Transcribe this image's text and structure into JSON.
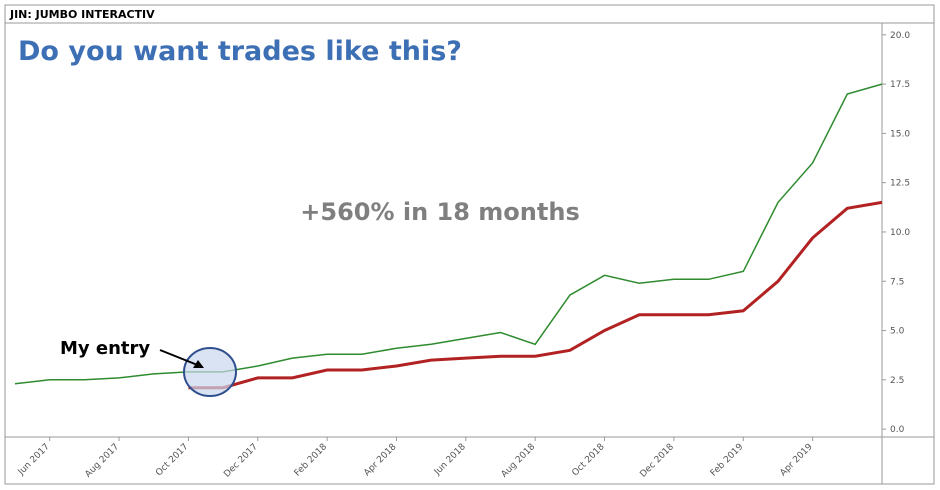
{
  "chart_data": {
    "type": "line",
    "title": "JIN: JUMBO INTERACTIV",
    "annotations": [
      "Do you want trades like this?",
      "+560% in 18 months",
      "My entry"
    ],
    "x": [
      "2017-05",
      "2017-06",
      "2017-07",
      "2017-08",
      "2017-09",
      "2017-10",
      "2017-11",
      "2017-12",
      "2018-01",
      "2018-02",
      "2018-03",
      "2018-04",
      "2018-05",
      "2018-06",
      "2018-07",
      "2018-08",
      "2018-09",
      "2018-10",
      "2018-11",
      "2018-12",
      "2019-01",
      "2019-02",
      "2019-03",
      "2019-04",
      "2019-05",
      "2019-06"
    ],
    "series": [
      {
        "color": "#2e8b2e",
        "values": [
          2.3,
          2.5,
          2.5,
          2.6,
          2.8,
          2.9,
          2.9,
          3.2,
          3.6,
          3.8,
          3.8,
          4.1,
          4.3,
          4.6,
          4.9,
          4.3,
          6.8,
          7.8,
          7.4,
          7.6,
          7.6,
          8.0,
          11.5,
          13.5,
          17.0,
          17.5
        ]
      },
      {
        "color": "#b22222",
        "values": [
          null,
          null,
          null,
          null,
          null,
          2.1,
          2.1,
          2.6,
          2.6,
          3.0,
          3.0,
          3.2,
          3.5,
          3.6,
          3.7,
          3.7,
          4.0,
          5.0,
          5.8,
          5.8,
          5.8,
          6.0,
          7.5,
          9.7,
          11.2,
          11.5
        ]
      }
    ],
    "xlim": [
      "2017-05",
      "2019-06"
    ],
    "xticks": [
      {
        "value": "2017-06",
        "label": "Jun 2017"
      },
      {
        "value": "2017-08",
        "label": "Aug 2017"
      },
      {
        "value": "2017-10",
        "label": "Oct 2017"
      },
      {
        "value": "2017-12",
        "label": "Dec 2017"
      },
      {
        "value": "2018-02",
        "label": "Feb 2018"
      },
      {
        "value": "2018-04",
        "label": "Apr 2018"
      },
      {
        "value": "2018-06",
        "label": "Jun 2018"
      },
      {
        "value": "2018-08",
        "label": "Aug 2018"
      },
      {
        "value": "2018-10",
        "label": "Oct 2018"
      },
      {
        "value": "2018-12",
        "label": "Dec 2018"
      },
      {
        "value": "2019-02",
        "label": "Feb 2019"
      },
      {
        "value": "2019-04",
        "label": "Apr 2019"
      }
    ],
    "ylim": [
      -0.4,
      20.6
    ],
    "yticks": [
      {
        "value": 0,
        "label": "0.0"
      },
      2.5,
      {
        "value": 5,
        "label": "5.0"
      },
      7.5,
      {
        "value": 10,
        "label": "10.0"
      },
      12.5,
      {
        "value": 15,
        "label": "15.0"
      },
      17.5,
      {
        "value": 20,
        "label": "20.0"
      }
    ]
  }
}
